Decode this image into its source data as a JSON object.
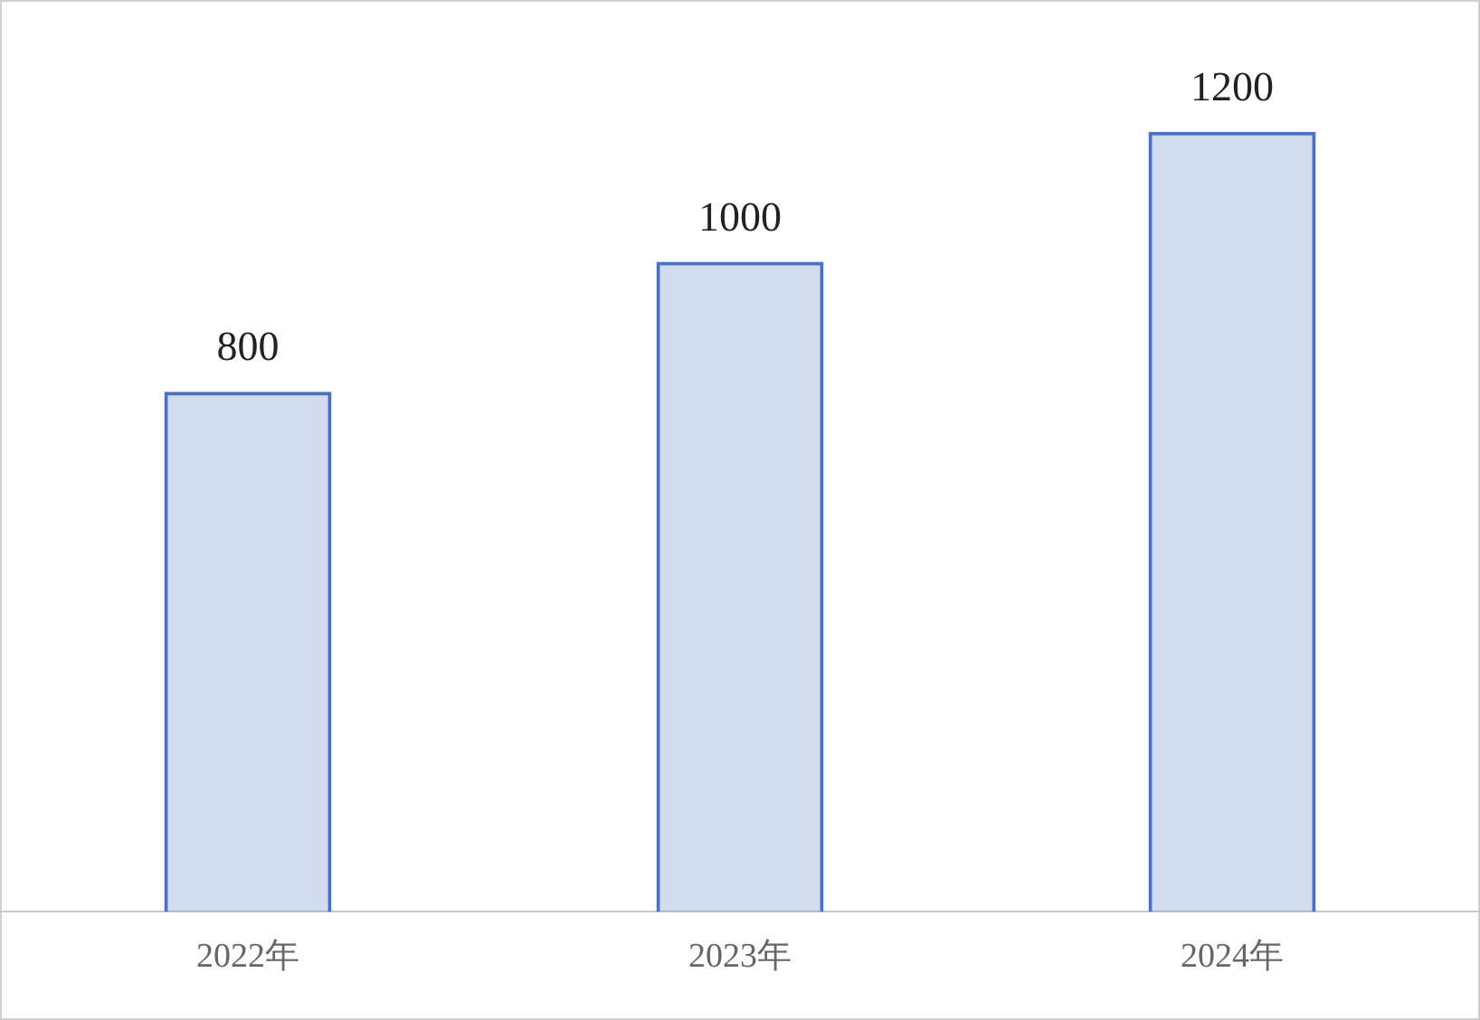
{
  "chart_data": {
    "type": "bar",
    "categories": [
      "2022年",
      "2023年",
      "2024年"
    ],
    "values": [
      800,
      1000,
      1200
    ],
    "color": "#4a72c0",
    "data_labels": true,
    "grid": false,
    "legend": false
  }
}
